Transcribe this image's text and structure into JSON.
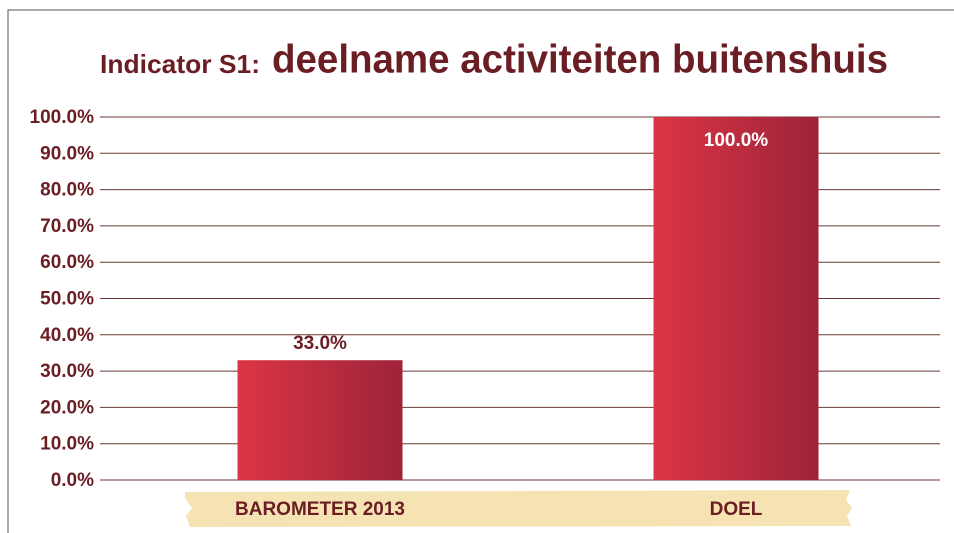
{
  "chart_data": {
    "type": "bar",
    "title": [
      "Indicator S1:",
      "deelname activiteiten buitenshuis"
    ],
    "categories": [
      "BAROMETER 2013",
      "DOEL"
    ],
    "values": [
      33,
      100
    ],
    "value_labels": [
      "33.0%",
      "100.0%"
    ],
    "color": "#d02f41",
    "ylim": [
      0,
      100
    ],
    "yticks": [
      {
        "value": 0,
        "label": "0.0%"
      },
      {
        "value": 10,
        "label": "10.0%"
      },
      {
        "value": 20,
        "label": "20.0%"
      },
      {
        "value": 30,
        "label": "30.0%"
      },
      {
        "value": 40,
        "label": "40.0%"
      },
      {
        "value": 50,
        "label": "50.0%"
      },
      {
        "value": 60,
        "label": "60.0%"
      },
      {
        "value": 70,
        "label": "70.0%"
      },
      {
        "value": 80,
        "label": "80.0%"
      },
      {
        "value": 90,
        "label": "90.0%"
      },
      {
        "value": 100,
        "label": "100.0%"
      }
    ],
    "grid": true
  }
}
